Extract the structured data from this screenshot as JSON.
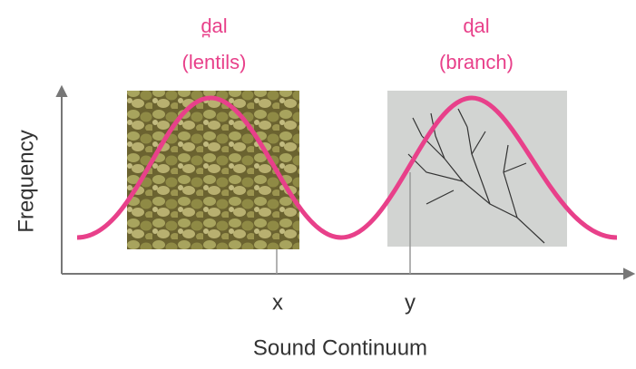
{
  "labels": {
    "left_word": "d̪al",
    "left_gloss": "(lentils)",
    "right_word": "ɖal",
    "right_gloss": "(branch)"
  },
  "axes": {
    "y_label": "Frequency",
    "x_label": "Sound Continuum"
  },
  "markers": {
    "x": "x",
    "y": "y"
  }
}
